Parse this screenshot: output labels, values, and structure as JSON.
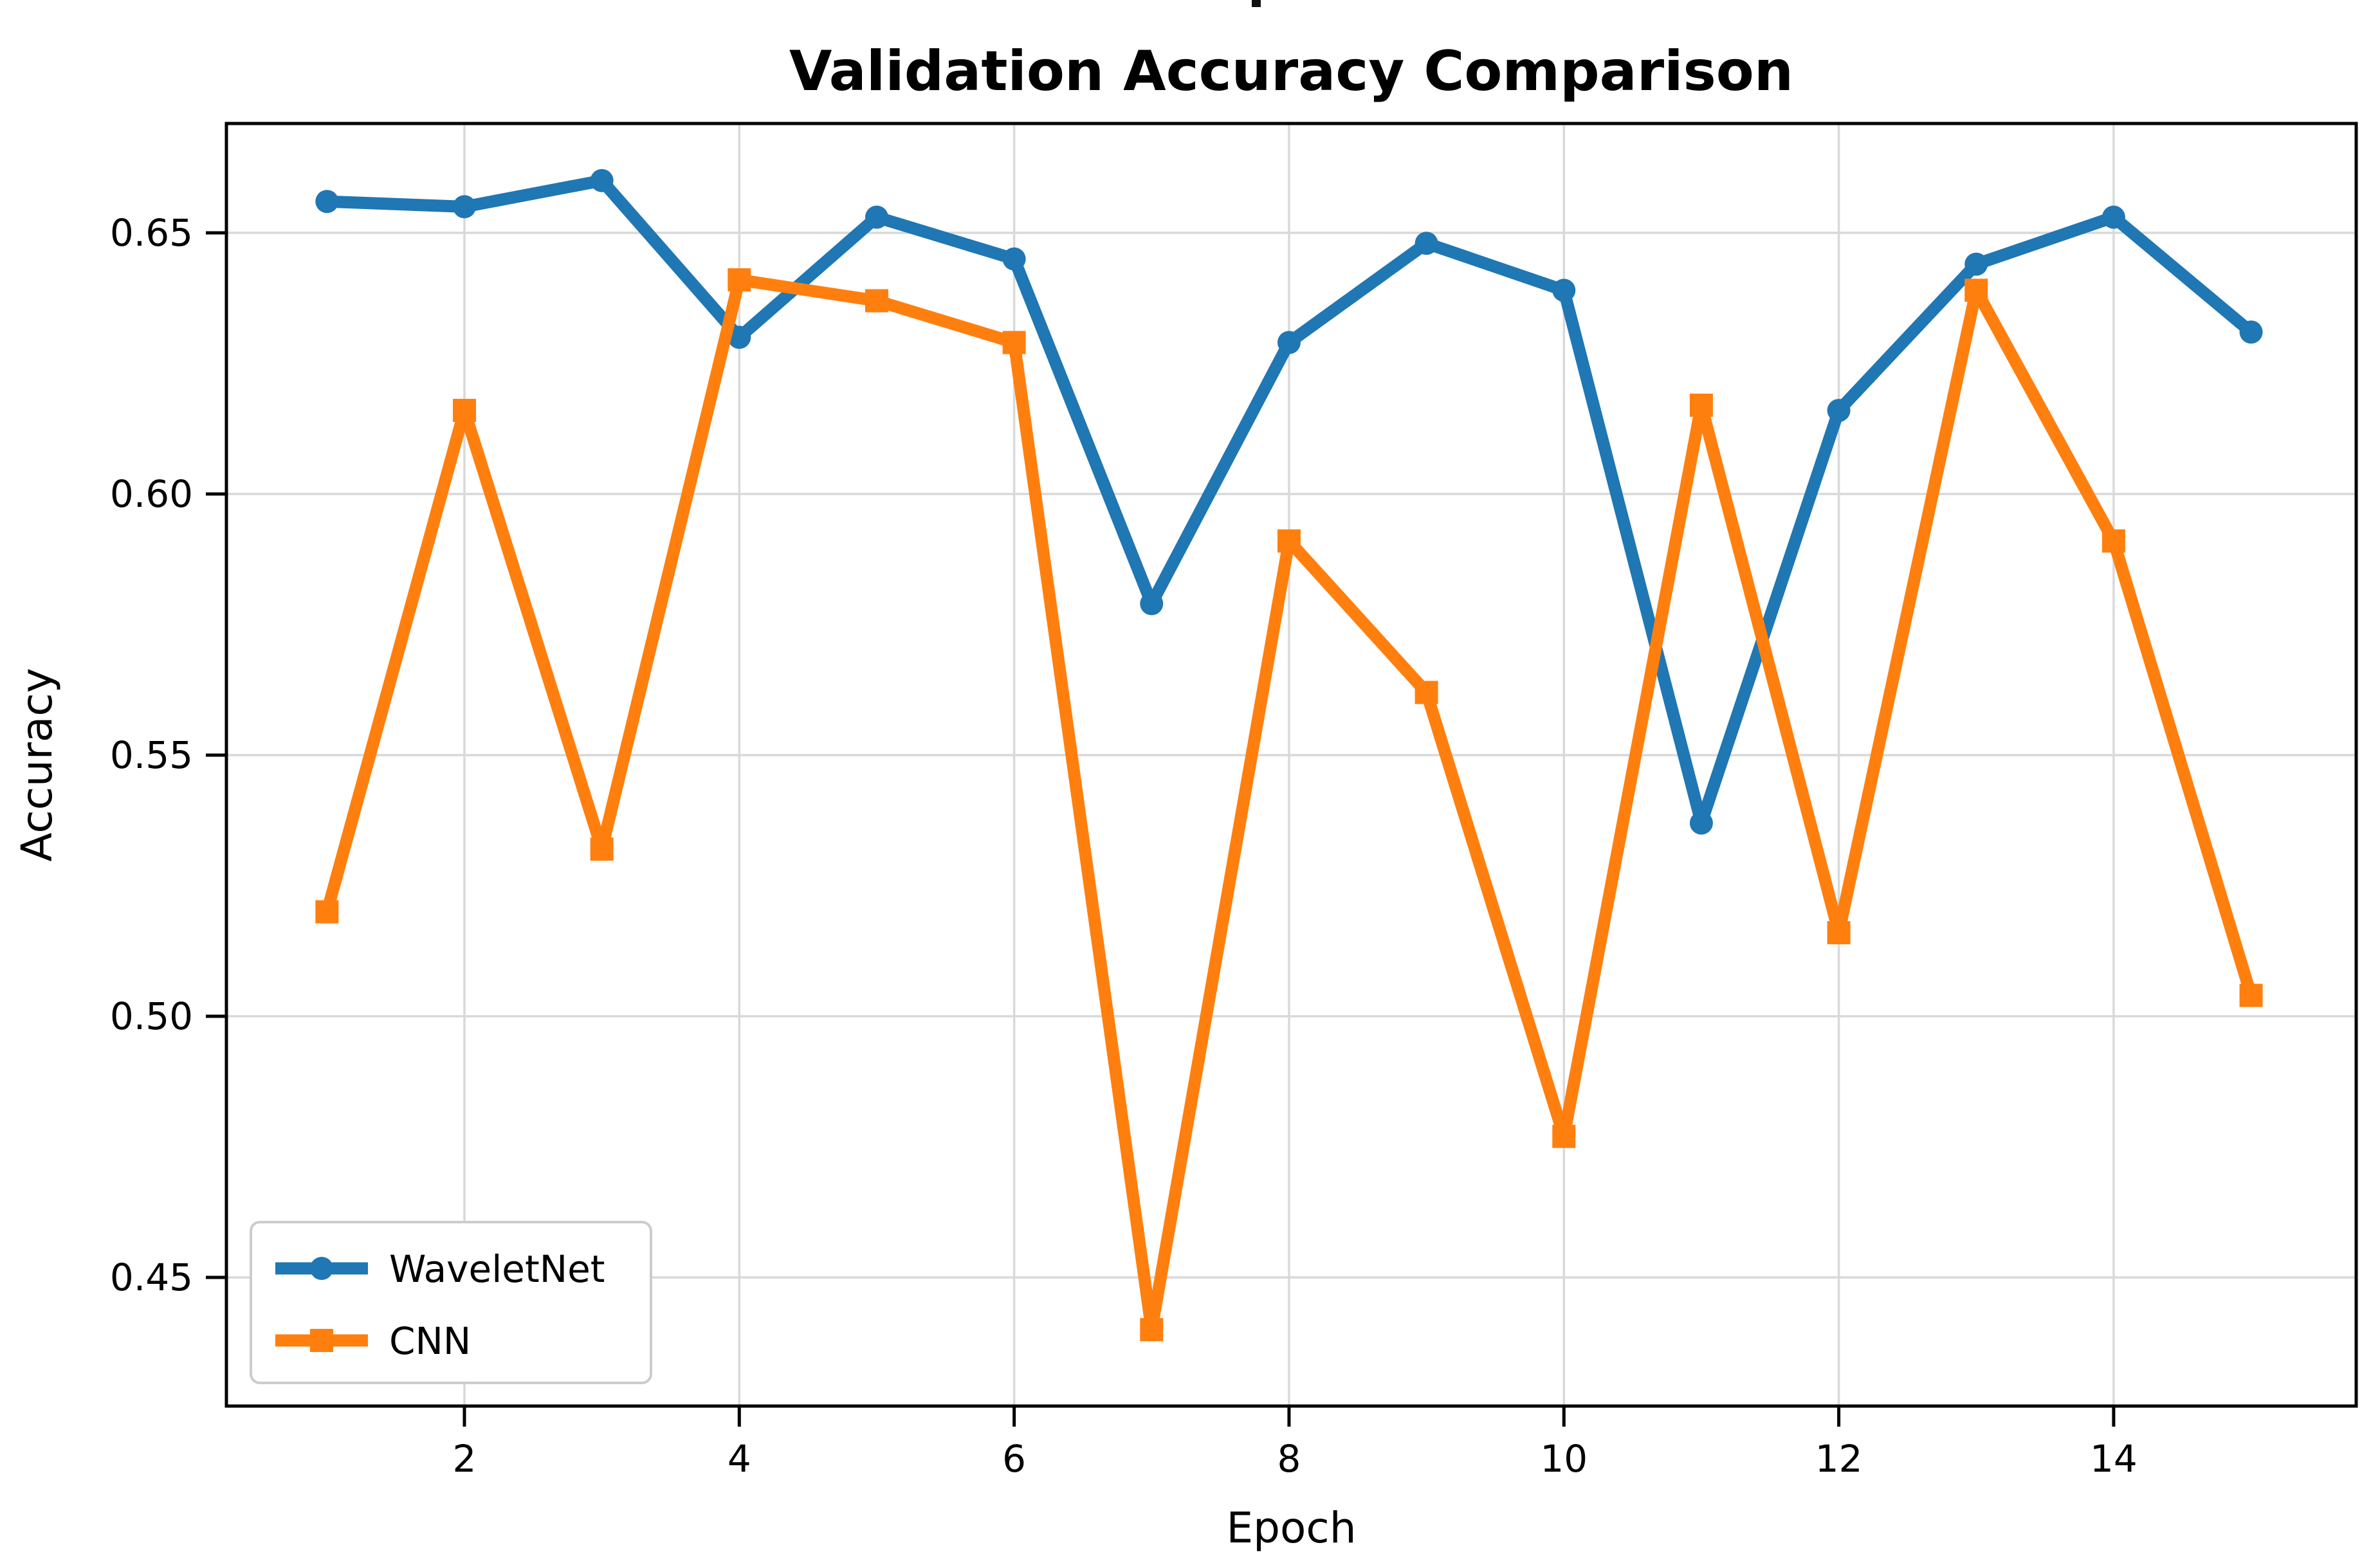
{
  "chart_data": {
    "type": "line",
    "title": "Validation Accuracy Comparison",
    "xlabel": "Epoch",
    "ylabel": "Accuracy",
    "x": [
      1,
      2,
      3,
      4,
      5,
      6,
      7,
      8,
      9,
      10,
      11,
      12,
      13,
      14,
      15
    ],
    "series": [
      {
        "name": "WaveletNet",
        "color": "#1f77b4",
        "marker": "circle",
        "values": [
          0.656,
          0.655,
          0.66,
          0.63,
          0.653,
          0.645,
          0.579,
          0.629,
          0.648,
          0.639,
          0.537,
          0.616,
          0.644,
          0.653,
          0.631
        ]
      },
      {
        "name": "CNN",
        "color": "#ff7f0e",
        "marker": "square",
        "values": [
          0.52,
          0.616,
          0.532,
          0.641,
          0.637,
          0.629,
          0.44,
          0.591,
          0.562,
          0.477,
          0.617,
          0.516,
          0.639,
          0.591,
          0.504
        ]
      }
    ],
    "xticks": [
      2,
      4,
      6,
      8,
      10,
      12,
      14
    ],
    "ytick_values": [
      0.45,
      0.5,
      0.55,
      0.6,
      0.65
    ],
    "ytick_labels": [
      "0.45",
      "0.50",
      "0.55",
      "0.60",
      "0.65"
    ],
    "xlim": [
      0.3,
      15.7
    ],
    "ylim": [
      0.425,
      0.671
    ],
    "grid": true,
    "grid_color": "#d9d9d9",
    "background_color": "#ffffff",
    "spine_color": "#000000",
    "legend_position": "lower left"
  }
}
